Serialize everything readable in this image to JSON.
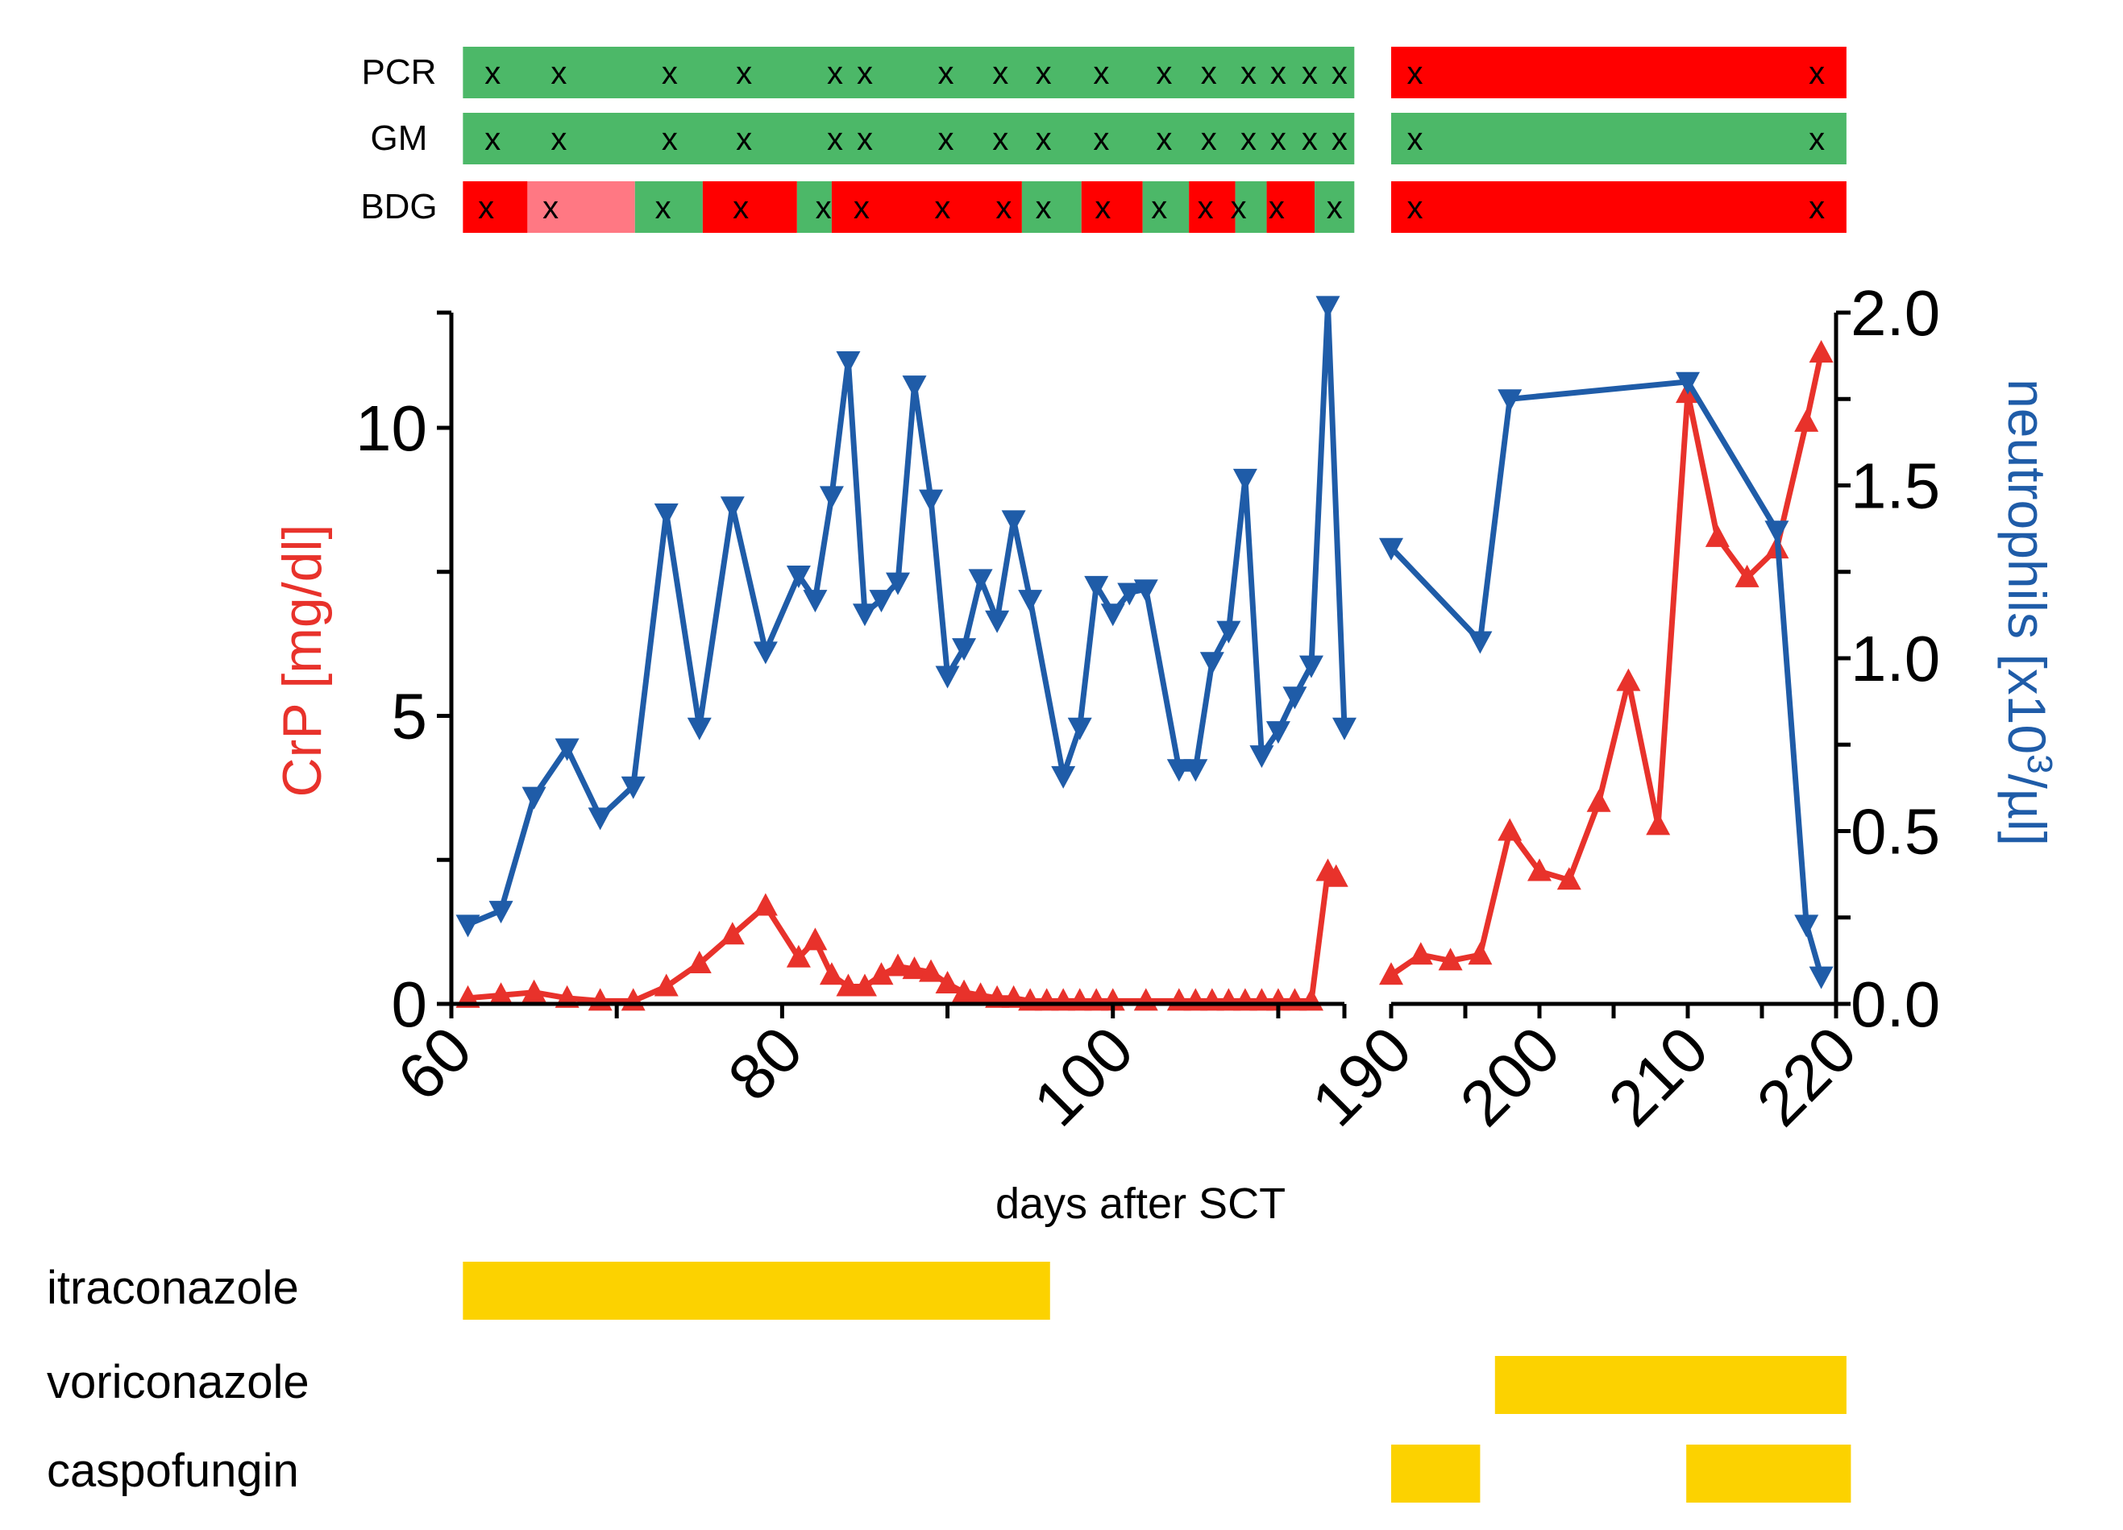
{
  "chart_data": {
    "type": "line",
    "xlabel": "days after SCT",
    "x_axis_break": true,
    "x_segments": [
      {
        "range": [
          60,
          114
        ],
        "ticks": [
          60,
          80,
          100
        ]
      },
      {
        "range": [
          190,
          220
        ],
        "ticks": [
          190,
          200,
          210,
          220
        ]
      }
    ],
    "y_left": {
      "label_main": "CrP",
      "label_unit": "[mg/dl]",
      "range": [
        0,
        12
      ],
      "ticks": [
        0,
        5,
        10
      ],
      "color": "#e8322b"
    },
    "y_right": {
      "label_main": "neutrophils",
      "label_unit": "[x10",
      "label_sup": "3",
      "label_tail": "/µl]",
      "range": [
        0,
        2
      ],
      "ticks": [
        "0.0",
        "0.5",
        "1.0",
        "1.5",
        "2.0"
      ],
      "color": "#1f5ca8"
    },
    "series": [
      {
        "key": "crp",
        "axis": "left",
        "marker": "triangle-up",
        "color": "#e8322b",
        "segments": [
          {
            "x": [
              61,
              63,
              65,
              67,
              69,
              71,
              73,
              75,
              77,
              79,
              81,
              82,
              83,
              84,
              85,
              86,
              87,
              88,
              89,
              90,
              91,
              92,
              93,
              94,
              95,
              96,
              97,
              98,
              99,
              100,
              102,
              104,
              105,
              106,
              107,
              108,
              109,
              110,
              111,
              112,
              113,
              113.5
            ],
            "y": [
              0.1,
              0.15,
              0.2,
              0.1,
              0.05,
              0.05,
              0.3,
              0.7,
              1.2,
              1.7,
              0.8,
              1.1,
              0.5,
              0.3,
              0.3,
              0.5,
              0.65,
              0.6,
              0.55,
              0.35,
              0.2,
              0.15,
              0.1,
              0.1,
              0.05,
              0.05,
              0.05,
              0.05,
              0.05,
              0.05,
              0.05,
              0.05,
              0.05,
              0.05,
              0.05,
              0.05,
              0.05,
              0.05,
              0.05,
              0.05,
              2.3,
              2.2
            ]
          },
          {
            "x": [
              190,
              192,
              194,
              196,
              198,
              200,
              202,
              204,
              206,
              208,
              210,
              212,
              214,
              216,
              218,
              219
            ],
            "y": [
              0.5,
              0.85,
              0.75,
              0.85,
              3.0,
              2.3,
              2.15,
              3.5,
              5.6,
              3.1,
              10.6,
              8.1,
              7.4,
              7.9,
              10.1,
              11.3
            ]
          }
        ]
      },
      {
        "key": "neutrophils",
        "axis": "right",
        "marker": "triangle-down",
        "color": "#1f5ca8",
        "segments": [
          {
            "x": [
              61,
              63,
              65,
              67,
              69,
              71,
              73,
              75,
              77,
              79,
              81,
              82,
              83,
              84,
              85,
              86,
              87,
              88,
              89,
              90,
              91,
              92,
              93,
              94,
              95,
              97,
              98,
              99,
              100,
              101,
              102,
              104,
              105,
              106,
              107,
              108,
              109,
              110,
              111,
              112,
              113,
              114
            ],
            "y": [
              0.23,
              0.27,
              0.6,
              0.74,
              0.54,
              0.63,
              1.42,
              0.8,
              1.44,
              1.02,
              1.24,
              1.17,
              1.47,
              1.86,
              1.13,
              1.17,
              1.22,
              1.79,
              1.46,
              0.95,
              1.03,
              1.23,
              1.11,
              1.4,
              1.17,
              0.66,
              0.8,
              1.21,
              1.13,
              1.19,
              1.2,
              0.68,
              0.68,
              0.99,
              1.08,
              1.52,
              0.72,
              0.79,
              0.89,
              0.98,
              2.02,
              0.8
            ]
          },
          {
            "x": [
              190,
              196,
              198,
              210,
              216,
              218,
              219
            ],
            "y": [
              1.32,
              1.05,
              1.75,
              1.8,
              1.37,
              0.23,
              0.08
            ]
          }
        ]
      }
    ],
    "test_rows": [
      {
        "label": "PCR",
        "left": {
          "blocks": [
            {
              "from": 60.7,
              "to": 114.6,
              "color": "#4cb868"
            }
          ],
          "marks": [
            62.5,
            66.5,
            73.2,
            77.7,
            83.2,
            85.0,
            89.9,
            93.2,
            95.8,
            99.3,
            103.1,
            105.8,
            108.2,
            110.0,
            111.9,
            113.7
          ]
        },
        "right": {
          "blocks": [
            {
              "from": 190.0,
              "to": 220.7,
              "color": "#ff0000"
            }
          ],
          "marks": [
            191.6,
            218.7
          ]
        }
      },
      {
        "label": "GM",
        "left": {
          "blocks": [
            {
              "from": 60.7,
              "to": 114.6,
              "color": "#4cb868"
            }
          ],
          "marks": [
            62.5,
            66.5,
            73.2,
            77.7,
            83.2,
            85.0,
            89.9,
            93.2,
            95.8,
            99.3,
            103.1,
            105.8,
            108.2,
            110.0,
            111.9,
            113.7
          ]
        },
        "right": {
          "blocks": [
            {
              "from": 190.0,
              "to": 220.7,
              "color": "#4cb868"
            }
          ],
          "marks": [
            191.6,
            218.7
          ]
        }
      },
      {
        "label": "BDG",
        "left": {
          "blocks": [
            {
              "from": 60.7,
              "to": 64.6,
              "color": "#ff0000"
            },
            {
              "from": 64.6,
              "to": 71.1,
              "color": "#ff7883"
            },
            {
              "from": 71.1,
              "to": 75.2,
              "color": "#4cb868"
            },
            {
              "from": 75.2,
              "to": 80.9,
              "color": "#ff0000"
            },
            {
              "from": 80.9,
              "to": 83.0,
              "color": "#4cb868"
            },
            {
              "from": 83.0,
              "to": 94.5,
              "color": "#ff0000"
            },
            {
              "from": 94.5,
              "to": 98.1,
              "color": "#4cb868"
            },
            {
              "from": 98.1,
              "to": 101.8,
              "color": "#ff0000"
            },
            {
              "from": 101.8,
              "to": 104.6,
              "color": "#4cb868"
            },
            {
              "from": 104.6,
              "to": 107.4,
              "color": "#ff0000"
            },
            {
              "from": 107.4,
              "to": 109.3,
              "color": "#4cb868"
            },
            {
              "from": 109.3,
              "to": 112.2,
              "color": "#ff0000"
            },
            {
              "from": 112.2,
              "to": 114.6,
              "color": "#4cb868"
            }
          ],
          "marks": [
            62.1,
            66.0,
            72.8,
            77.5,
            82.5,
            84.8,
            89.7,
            93.4,
            95.8,
            99.4,
            102.8,
            105.6,
            107.6,
            109.9,
            113.4
          ]
        },
        "right": {
          "blocks": [
            {
              "from": 190.0,
              "to": 220.7,
              "color": "#ff0000"
            }
          ],
          "marks": [
            191.6,
            218.7
          ]
        }
      }
    ],
    "test_mark_symbol": "x",
    "treatments": [
      {
        "label": "itraconazole",
        "bars": [
          {
            "seg": 0,
            "from": 60.7,
            "to": 96.2
          }
        ],
        "color": "#fcd200"
      },
      {
        "label": "voriconazole",
        "bars": [
          {
            "seg": 1,
            "from": 197.0,
            "to": 220.7
          }
        ],
        "color": "#fcd200"
      },
      {
        "label": "caspofungin",
        "bars": [
          {
            "seg": 1,
            "from": 190.0,
            "to": 196.0
          },
          {
            "seg": 1,
            "from": 209.9,
            "to": 221.0
          }
        ],
        "color": "#fcd200"
      }
    ]
  }
}
